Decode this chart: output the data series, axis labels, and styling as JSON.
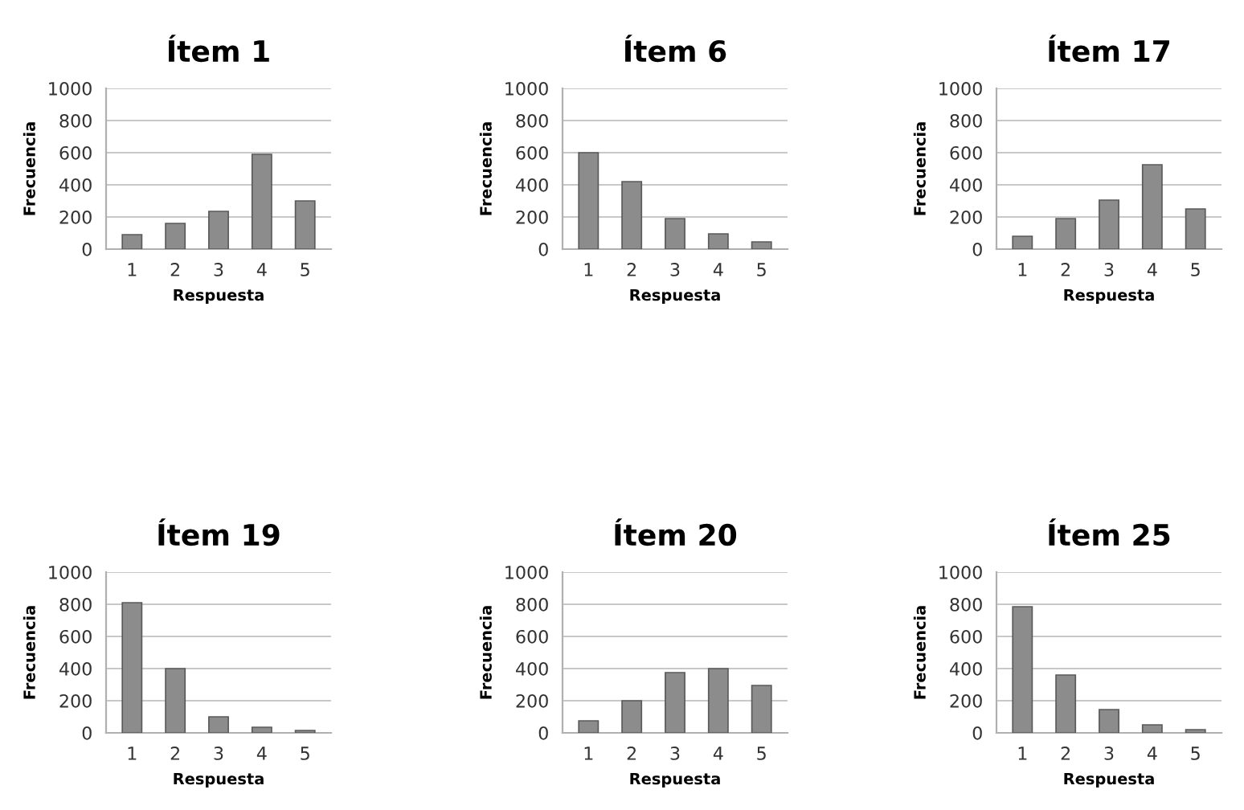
{
  "chart_data": [
    {
      "type": "bar",
      "title": "Ítem 1",
      "xlabel": "Respuesta",
      "ylabel": "Frecuencia",
      "categories": [
        "1",
        "2",
        "3",
        "4",
        "5"
      ],
      "values": [
        90,
        160,
        235,
        590,
        300
      ],
      "color": "#8c8c8c",
      "ylim": [
        0,
        1000
      ],
      "yticks": [
        0,
        200,
        400,
        600,
        800,
        1000
      ],
      "grid": "y"
    },
    {
      "type": "bar",
      "title": "Ítem 6",
      "xlabel": "Respuesta",
      "ylabel": "Frecuencia",
      "categories": [
        "1",
        "2",
        "3",
        "4",
        "5"
      ],
      "values": [
        600,
        420,
        190,
        95,
        45
      ],
      "color": "#8c8c8c",
      "ylim": [
        0,
        1000
      ],
      "yticks": [
        0,
        200,
        400,
        600,
        800,
        1000
      ],
      "grid": "y"
    },
    {
      "type": "bar",
      "title": "Ítem 17",
      "xlabel": "Respuesta",
      "ylabel": "Frecuencia",
      "categories": [
        "1",
        "2",
        "3",
        "4",
        "5"
      ],
      "values": [
        80,
        190,
        305,
        525,
        250
      ],
      "color": "#8c8c8c",
      "ylim": [
        0,
        1000
      ],
      "yticks": [
        0,
        200,
        400,
        600,
        800,
        1000
      ],
      "grid": "y"
    },
    {
      "type": "bar",
      "title": "Ítem 19",
      "xlabel": "Respuesta",
      "ylabel": "Frecuencia",
      "categories": [
        "1",
        "2",
        "3",
        "4",
        "5"
      ],
      "values": [
        810,
        400,
        100,
        35,
        15
      ],
      "color": "#8c8c8c",
      "ylim": [
        0,
        1000
      ],
      "yticks": [
        0,
        200,
        400,
        600,
        800,
        1000
      ],
      "grid": "y"
    },
    {
      "type": "bar",
      "title": "Ítem 20",
      "xlabel": "Respuesta",
      "ylabel": "Frecuencia",
      "categories": [
        "1",
        "2",
        "3",
        "4",
        "5"
      ],
      "values": [
        75,
        200,
        375,
        400,
        295
      ],
      "color": "#8c8c8c",
      "ylim": [
        0,
        1000
      ],
      "yticks": [
        0,
        200,
        400,
        600,
        800,
        1000
      ],
      "grid": "y"
    },
    {
      "type": "bar",
      "title": "Ítem 25",
      "xlabel": "Respuesta",
      "ylabel": "Frecuencia",
      "categories": [
        "1",
        "2",
        "3",
        "4",
        "5"
      ],
      "values": [
        785,
        360,
        145,
        50,
        20
      ],
      "color": "#8c8c8c",
      "ylim": [
        0,
        1000
      ],
      "yticks": [
        0,
        200,
        400,
        600,
        800,
        1000
      ],
      "grid": "y"
    }
  ]
}
